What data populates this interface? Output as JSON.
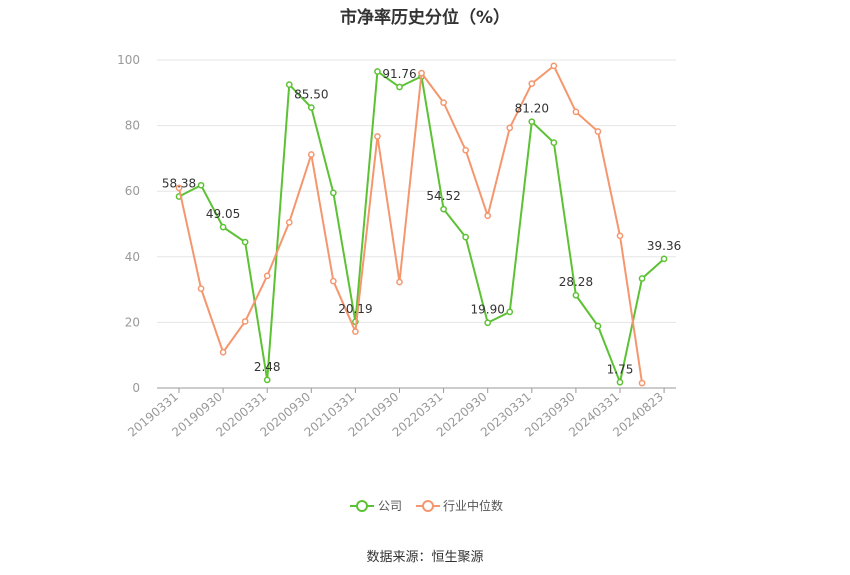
{
  "chart_data": {
    "type": "line",
    "title": "市净率历史分位（%）",
    "xlabel": "",
    "ylabel": "",
    "ylim": [
      0,
      100
    ],
    "yticks": [
      0,
      20,
      40,
      60,
      80,
      100
    ],
    "grid": true,
    "legend_position": "bottom",
    "x": [
      "20190331",
      "20190630",
      "20190930",
      "20191231",
      "20200331",
      "20200630",
      "20200930",
      "20201231",
      "20210331",
      "20210630",
      "20210930",
      "20211231",
      "20220331",
      "20220630",
      "20220930",
      "20221231",
      "20230331",
      "20230630",
      "20230930",
      "20231231",
      "20240331",
      "20240630",
      "20240823"
    ],
    "x_tick_labels": [
      "20190331",
      "20190930",
      "20200331",
      "20200930",
      "20210331",
      "20210930",
      "20220331",
      "20220930",
      "20230331",
      "20230930",
      "20240331",
      "20240823"
    ],
    "series": [
      {
        "name": "公司",
        "color": "#5cc234",
        "values": [
          58.38,
          61.8,
          49.05,
          44.5,
          2.48,
          92.5,
          85.5,
          59.5,
          20.19,
          96.5,
          91.76,
          95.0,
          54.52,
          46.0,
          19.9,
          23.2,
          81.2,
          74.8,
          28.28,
          18.9,
          1.75,
          33.4,
          39.36
        ],
        "labels": {
          "0": "58.38",
          "2": "49.05",
          "4": "2.48",
          "6": "85.50",
          "8": "20.19",
          "10": "91.76",
          "12": "54.52",
          "14": "19.90",
          "16": "81.20",
          "18": "28.28",
          "20": "1.75",
          "22": "39.36"
        }
      },
      {
        "name": "行业中位数",
        "color": "#f5976e",
        "values": [
          61.0,
          30.3,
          10.9,
          20.3,
          34.2,
          50.5,
          71.2,
          32.6,
          17.2,
          76.7,
          32.3,
          96.0,
          87.0,
          72.5,
          52.5,
          79.3,
          92.8,
          98.2,
          84.2,
          78.2,
          46.4,
          1.5,
          null
        ]
      }
    ]
  },
  "source_text": "数据来源：恒生聚源"
}
